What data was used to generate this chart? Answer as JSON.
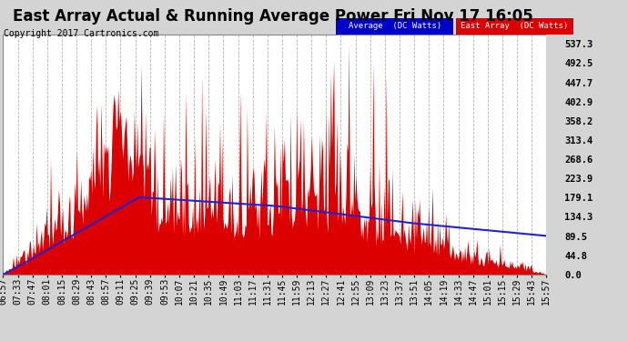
{
  "title": "East Array Actual & Running Average Power Fri Nov 17 16:05",
  "copyright": "Copyright 2017 Cartronics.com",
  "legend_avg": "Average  (DC Watts)",
  "legend_east": "East Array  (DC Watts)",
  "yticks": [
    0.0,
    44.8,
    89.5,
    134.3,
    179.1,
    223.9,
    268.6,
    313.4,
    358.2,
    402.9,
    447.7,
    492.5,
    537.3
  ],
  "ymax": 560,
  "xtick_labels": [
    "06:57",
    "07:33",
    "07:47",
    "08:01",
    "08:15",
    "08:29",
    "08:43",
    "08:57",
    "09:11",
    "09:25",
    "09:39",
    "09:53",
    "10:07",
    "10:21",
    "10:35",
    "10:49",
    "11:03",
    "11:17",
    "11:31",
    "11:45",
    "11:59",
    "12:13",
    "12:27",
    "12:41",
    "12:55",
    "13:09",
    "13:23",
    "13:37",
    "13:51",
    "14:05",
    "14:19",
    "14:33",
    "14:47",
    "15:01",
    "15:15",
    "15:29",
    "15:43",
    "15:57"
  ],
  "plot_bg_color": "#ffffff",
  "fig_bg_color": "#d4d4d4",
  "fill_color": "#dd0000",
  "avg_line_color": "#2222cc",
  "grid_color": "#aaaaaa",
  "tick_label_color": "#000000",
  "legend_avg_bg": "#0000cc",
  "legend_east_bg": "#dd0000",
  "title_fontsize": 12,
  "copyright_fontsize": 7,
  "tick_fontsize": 7
}
